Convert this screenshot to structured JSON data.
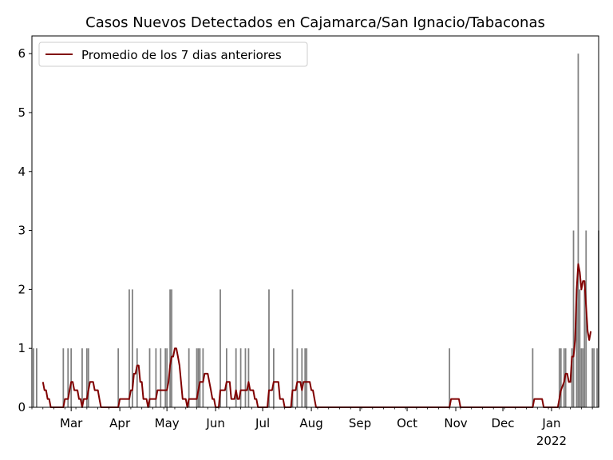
{
  "chart_data": {
    "type": "bar",
    "title": "Casos Nuevos Detectados en Cajamarca/San Ignacio/Tabaconas",
    "xlabel": "",
    "ylabel": "",
    "ylim": [
      0,
      6.3
    ],
    "x_range": [
      "2021-02-04",
      "2022-01-31"
    ],
    "y_ticks": [
      0,
      1,
      2,
      3,
      4,
      5,
      6
    ],
    "x_ticks": [
      {
        "date": "2021-03-01",
        "label": "Mar"
      },
      {
        "date": "2021-04-01",
        "label": "Apr"
      },
      {
        "date": "2021-05-01",
        "label": "May"
      },
      {
        "date": "2021-06-01",
        "label": "Jun"
      },
      {
        "date": "2021-07-01",
        "label": "Jul"
      },
      {
        "date": "2021-08-01",
        "label": "Aug"
      },
      {
        "date": "2021-09-01",
        "label": "Sep"
      },
      {
        "date": "2021-10-01",
        "label": "Oct"
      },
      {
        "date": "2021-11-01",
        "label": "Nov"
      },
      {
        "date": "2021-12-01",
        "label": "Dec"
      },
      {
        "date": "2022-01-01",
        "label": "Jan",
        "sublabel": "2022"
      }
    ],
    "grid": false,
    "legend_position": "top-left",
    "colors": {
      "bars": "#808080",
      "line": "#800000"
    },
    "series": [
      {
        "kind": "bar",
        "values_by_date": [
          [
            "2021-02-05",
            1
          ],
          [
            "2021-02-07",
            1
          ],
          [
            "2021-02-24",
            1
          ],
          [
            "2021-02-27",
            1
          ],
          [
            "2021-02-29",
            1
          ],
          [
            "2021-03-08",
            1
          ],
          [
            "2021-03-11",
            1
          ],
          [
            "2021-03-12",
            1
          ],
          [
            "2021-03-31",
            1
          ],
          [
            "2021-04-07",
            2
          ],
          [
            "2021-04-09",
            2
          ],
          [
            "2021-04-12",
            1
          ],
          [
            "2021-04-20",
            1
          ],
          [
            "2021-04-24",
            1
          ],
          [
            "2021-04-27",
            1
          ],
          [
            "2021-04-30",
            1
          ],
          [
            "2021-05-01",
            1
          ],
          [
            "2021-05-03",
            2
          ],
          [
            "2021-05-04",
            2
          ],
          [
            "2021-05-15",
            1
          ],
          [
            "2021-05-20",
            1
          ],
          [
            "2021-05-21",
            1
          ],
          [
            "2021-05-22",
            1
          ],
          [
            "2021-05-24",
            1
          ],
          [
            "2021-06-04",
            2
          ],
          [
            "2021-06-08",
            1
          ],
          [
            "2021-06-14",
            1
          ],
          [
            "2021-06-17",
            1
          ],
          [
            "2021-06-20",
            1
          ],
          [
            "2021-06-22",
            1
          ],
          [
            "2021-07-05",
            2
          ],
          [
            "2021-07-08",
            1
          ],
          [
            "2021-07-20",
            2
          ],
          [
            "2021-07-23",
            1
          ],
          [
            "2021-07-26",
            1
          ],
          [
            "2021-07-28",
            1
          ],
          [
            "2021-07-29",
            1
          ],
          [
            "2021-10-28",
            1
          ],
          [
            "2021-12-20",
            1
          ],
          [
            "2022-01-06",
            1
          ],
          [
            "2022-01-07",
            1
          ],
          [
            "2022-01-09",
            1
          ],
          [
            "2022-01-10",
            1
          ],
          [
            "2022-01-14",
            1
          ],
          [
            "2022-01-15",
            3
          ],
          [
            "2022-01-17",
            2
          ],
          [
            "2022-01-18",
            6
          ],
          [
            "2022-01-19",
            2
          ],
          [
            "2022-01-20",
            1
          ],
          [
            "2022-01-21",
            1
          ],
          [
            "2022-01-22",
            2
          ],
          [
            "2022-01-23",
            3
          ],
          [
            "2022-01-27",
            1
          ],
          [
            "2022-01-28",
            1
          ],
          [
            "2022-01-30",
            1
          ],
          [
            "2022-01-31",
            3
          ]
        ]
      },
      {
        "kind": "line",
        "name": "Promedio de los 7 dias anteriores",
        "points": [
          [
            "2021-02-11",
            0.43
          ],
          [
            "2021-02-12",
            0.29
          ],
          [
            "2021-02-13",
            0.29
          ],
          [
            "2021-02-14",
            0.14
          ],
          [
            "2021-02-15",
            0.14
          ],
          [
            "2021-02-16",
            0
          ],
          [
            "2021-02-24",
            0
          ],
          [
            "2021-02-25",
            0.14
          ],
          [
            "2021-02-27",
            0.14
          ],
          [
            "2021-02-28",
            0.29
          ],
          [
            "2021-03-01",
            0.43
          ],
          [
            "2021-03-02",
            0.43
          ],
          [
            "2021-03-03",
            0.29
          ],
          [
            "2021-03-05",
            0.29
          ],
          [
            "2021-03-06",
            0.14
          ],
          [
            "2021-03-07",
            0.14
          ],
          [
            "2021-03-08",
            0
          ],
          [
            "2021-03-09",
            0.14
          ],
          [
            "2021-03-11",
            0.14
          ],
          [
            "2021-03-12",
            0.29
          ],
          [
            "2021-03-13",
            0.43
          ],
          [
            "2021-03-15",
            0.43
          ],
          [
            "2021-03-16",
            0.29
          ],
          [
            "2021-03-18",
            0.29
          ],
          [
            "2021-03-19",
            0.14
          ],
          [
            "2021-03-20",
            0
          ],
          [
            "2021-03-31",
            0
          ],
          [
            "2021-04-01",
            0.14
          ],
          [
            "2021-04-07",
            0.14
          ],
          [
            "2021-04-08",
            0.29
          ],
          [
            "2021-04-09",
            0.29
          ],
          [
            "2021-04-10",
            0.57
          ],
          [
            "2021-04-11",
            0.57
          ],
          [
            "2021-04-12",
            0.71
          ],
          [
            "2021-04-13",
            0.71
          ],
          [
            "2021-04-14",
            0.43
          ],
          [
            "2021-04-15",
            0.43
          ],
          [
            "2021-04-16",
            0.14
          ],
          [
            "2021-04-18",
            0.14
          ],
          [
            "2021-04-19",
            0
          ],
          [
            "2021-04-20",
            0.14
          ],
          [
            "2021-04-24",
            0.14
          ],
          [
            "2021-04-25",
            0.29
          ],
          [
            "2021-05-01",
            0.29
          ],
          [
            "2021-05-02",
            0.43
          ],
          [
            "2021-05-03",
            0.71
          ],
          [
            "2021-05-04",
            0.86
          ],
          [
            "2021-05-05",
            0.86
          ],
          [
            "2021-05-06",
            1.0
          ],
          [
            "2021-05-07",
            1.0
          ],
          [
            "2021-05-08",
            0.86
          ],
          [
            "2021-05-09",
            0.71
          ],
          [
            "2021-05-10",
            0.43
          ],
          [
            "2021-05-11",
            0.14
          ],
          [
            "2021-05-13",
            0.14
          ],
          [
            "2021-05-14",
            0
          ],
          [
            "2021-05-15",
            0.14
          ],
          [
            "2021-05-20",
            0.14
          ],
          [
            "2021-05-21",
            0.29
          ],
          [
            "2021-05-22",
            0.43
          ],
          [
            "2021-05-24",
            0.43
          ],
          [
            "2021-05-25",
            0.57
          ],
          [
            "2021-05-27",
            0.57
          ],
          [
            "2021-05-28",
            0.43
          ],
          [
            "2021-05-29",
            0.29
          ],
          [
            "2021-05-30",
            0.14
          ],
          [
            "2021-05-31",
            0.14
          ],
          [
            "2021-06-01",
            0
          ],
          [
            "2021-06-03",
            0
          ],
          [
            "2021-06-04",
            0.29
          ],
          [
            "2021-06-07",
            0.29
          ],
          [
            "2021-06-08",
            0.43
          ],
          [
            "2021-06-10",
            0.43
          ],
          [
            "2021-06-11",
            0.14
          ],
          [
            "2021-06-13",
            0.14
          ],
          [
            "2021-06-14",
            0.29
          ],
          [
            "2021-06-15",
            0.14
          ],
          [
            "2021-06-16",
            0.14
          ],
          [
            "2021-06-17",
            0.29
          ],
          [
            "2021-06-21",
            0.29
          ],
          [
            "2021-06-22",
            0.43
          ],
          [
            "2021-06-23",
            0.29
          ],
          [
            "2021-06-25",
            0.29
          ],
          [
            "2021-06-26",
            0.14
          ],
          [
            "2021-06-27",
            0.14
          ],
          [
            "2021-06-28",
            0
          ],
          [
            "2021-07-04",
            0
          ],
          [
            "2021-07-05",
            0.29
          ],
          [
            "2021-07-07",
            0.29
          ],
          [
            "2021-07-08",
            0.43
          ],
          [
            "2021-07-11",
            0.43
          ],
          [
            "2021-07-12",
            0.14
          ],
          [
            "2021-07-14",
            0.14
          ],
          [
            "2021-07-15",
            0
          ],
          [
            "2021-07-19",
            0
          ],
          [
            "2021-07-20",
            0.29
          ],
          [
            "2021-07-22",
            0.29
          ],
          [
            "2021-07-23",
            0.43
          ],
          [
            "2021-07-25",
            0.43
          ],
          [
            "2021-07-26",
            0.29
          ],
          [
            "2021-07-27",
            0.43
          ],
          [
            "2021-07-31",
            0.43
          ],
          [
            "2021-08-01",
            0.29
          ],
          [
            "2021-08-02",
            0.29
          ],
          [
            "2021-08-03",
            0.14
          ],
          [
            "2021-08-04",
            0
          ],
          [
            "2021-10-28",
            0
          ],
          [
            "2021-10-29",
            0.14
          ],
          [
            "2021-11-03",
            0.14
          ],
          [
            "2021-11-04",
            0
          ],
          [
            "2021-12-20",
            0
          ],
          [
            "2021-12-21",
            0.14
          ],
          [
            "2021-12-26",
            0.14
          ],
          [
            "2021-12-27",
            0
          ],
          [
            "2022-01-05",
            0
          ],
          [
            "2022-01-07",
            0.29
          ],
          [
            "2022-01-09",
            0.43
          ],
          [
            "2022-01-10",
            0.57
          ],
          [
            "2022-01-11",
            0.57
          ],
          [
            "2022-01-12",
            0.43
          ],
          [
            "2022-01-13",
            0.43
          ],
          [
            "2022-01-14",
            0.86
          ],
          [
            "2022-01-15",
            0.86
          ],
          [
            "2022-01-16",
            1.14
          ],
          [
            "2022-01-17",
            2.0
          ],
          [
            "2022-01-18",
            2.43
          ],
          [
            "2022-01-19",
            2.29
          ],
          [
            "2022-01-20",
            2.0
          ],
          [
            "2022-01-21",
            2.14
          ],
          [
            "2022-01-22",
            2.14
          ],
          [
            "2022-01-23",
            1.71
          ],
          [
            "2022-01-24",
            1.29
          ],
          [
            "2022-01-25",
            1.14
          ],
          [
            "2022-01-26",
            1.29
          ]
        ]
      }
    ]
  }
}
